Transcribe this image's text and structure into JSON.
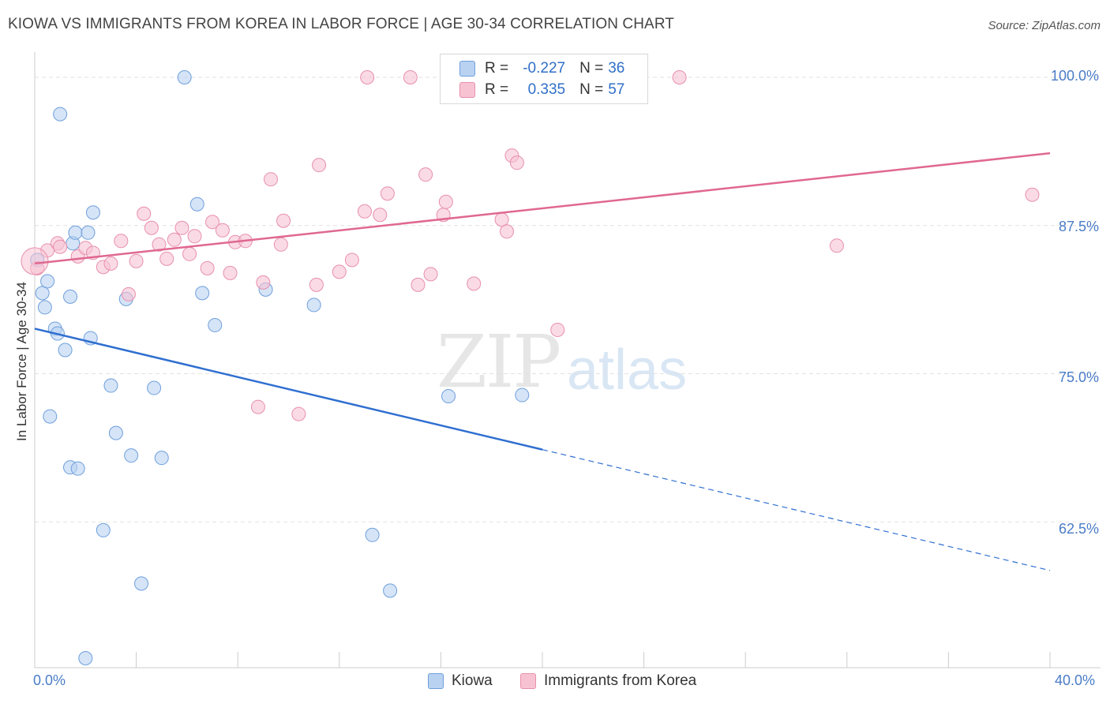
{
  "title": "KIOWA VS IMMIGRANTS FROM KOREA IN LABOR FORCE | AGE 30-34 CORRELATION CHART",
  "source": "Source: ZipAtlas.com",
  "watermark": {
    "zip": "ZIP",
    "atlas": "atlas"
  },
  "colors": {
    "kiowa_fill": "#b9d2f1",
    "kiowa_stroke": "#6f9fdc",
    "kiowa_line": "#2f6fd0",
    "korea_fill": "#f7c3d3",
    "korea_stroke": "#e88fac",
    "korea_line": "#e06890",
    "tick_label": "#4a7cc7",
    "grid": "#e2e2e2"
  },
  "legend_top": {
    "rows": [
      {
        "r_label": "R =",
        "r_value": "-0.227",
        "n_label": "N =",
        "n_value": "36"
      },
      {
        "r_label": "R =",
        "r_value": "0.335",
        "n_label": "N =",
        "n_value": "57"
      }
    ]
  },
  "legend_bottom": {
    "kiowa": "Kiowa",
    "korea": "Immigrants from Korea"
  },
  "chart_data": {
    "type": "scatter",
    "title": "KIOWA VS IMMIGRANTS FROM KOREA IN LABOR FORCE | AGE 30-34 CORRELATION CHART",
    "xlabel": "",
    "ylabel": "In Labor Force | Age 30-34",
    "xlim": [
      0,
      40
    ],
    "ylim": [
      51.0,
      101.2
    ],
    "x_tick_labels": [
      "0.0%",
      "40.0%"
    ],
    "y_ticks": [
      62.5,
      75.0,
      87.5,
      100.0
    ],
    "y_tick_labels": [
      "62.5%",
      "75.0%",
      "87.5%",
      "100.0%"
    ],
    "grid": true,
    "legend_placement": "top-center",
    "series": [
      {
        "name": "Kiowa",
        "R": -0.227,
        "N": 36,
        "trend": {
          "x0": 0,
          "y0": 78.8,
          "x1": 20,
          "y1": 68.6,
          "dashed_to_x": 40,
          "dashed_to_y": 58.4
        },
        "points": [
          [
            0.1,
            84.6
          ],
          [
            0.3,
            81.8
          ],
          [
            0.4,
            80.6
          ],
          [
            0.5,
            82.8
          ],
          [
            0.6,
            71.4
          ],
          [
            0.8,
            78.8
          ],
          [
            0.9,
            78.4
          ],
          [
            1.0,
            96.9
          ],
          [
            1.2,
            77.0
          ],
          [
            1.4,
            81.5
          ],
          [
            1.4,
            67.1
          ],
          [
            1.5,
            86.0
          ],
          [
            1.6,
            86.9
          ],
          [
            1.7,
            67.0
          ],
          [
            2.0,
            51.0
          ],
          [
            2.1,
            86.9
          ],
          [
            2.2,
            78.0
          ],
          [
            2.3,
            88.6
          ],
          [
            2.7,
            61.8
          ],
          [
            3.0,
            74.0
          ],
          [
            3.2,
            70.0
          ],
          [
            3.6,
            81.3
          ],
          [
            3.8,
            68.1
          ],
          [
            4.2,
            57.3
          ],
          [
            4.7,
            73.8
          ],
          [
            5.0,
            67.9
          ],
          [
            5.9,
            100.0
          ],
          [
            6.4,
            89.3
          ],
          [
            6.6,
            81.8
          ],
          [
            7.1,
            79.1
          ],
          [
            9.1,
            82.1
          ],
          [
            11.0,
            80.8
          ],
          [
            13.3,
            61.4
          ],
          [
            14.0,
            56.7
          ],
          [
            16.3,
            73.1
          ],
          [
            19.2,
            73.2
          ]
        ]
      },
      {
        "name": "Immigrants from Korea",
        "R": 0.335,
        "N": 57,
        "trend": {
          "x0": 0,
          "y0": 84.3,
          "x1": 40,
          "y1": 93.6
        },
        "points": [
          [
            0.1,
            83.9
          ],
          [
            0.5,
            85.4
          ],
          [
            0.9,
            86.0
          ],
          [
            1.0,
            85.7
          ],
          [
            1.7,
            84.9
          ],
          [
            2.0,
            85.6
          ],
          [
            2.3,
            85.2
          ],
          [
            2.7,
            84.0
          ],
          [
            3.0,
            84.3
          ],
          [
            3.4,
            86.2
          ],
          [
            3.7,
            81.7
          ],
          [
            4.0,
            84.5
          ],
          [
            4.3,
            88.5
          ],
          [
            4.6,
            87.3
          ],
          [
            4.9,
            85.9
          ],
          [
            5.2,
            84.7
          ],
          [
            5.5,
            86.3
          ],
          [
            5.8,
            87.3
          ],
          [
            6.1,
            85.1
          ],
          [
            6.3,
            86.6
          ],
          [
            6.8,
            83.9
          ],
          [
            7.0,
            87.8
          ],
          [
            7.4,
            87.1
          ],
          [
            7.7,
            83.5
          ],
          [
            7.9,
            86.1
          ],
          [
            8.3,
            86.2
          ],
          [
            8.8,
            72.2
          ],
          [
            9.0,
            82.7
          ],
          [
            9.3,
            91.4
          ],
          [
            9.7,
            85.9
          ],
          [
            9.8,
            87.9
          ],
          [
            10.4,
            71.6
          ],
          [
            11.1,
            82.5
          ],
          [
            11.2,
            92.6
          ],
          [
            12.0,
            83.6
          ],
          [
            12.5,
            84.6
          ],
          [
            13.0,
            88.7
          ],
          [
            13.1,
            100.0
          ],
          [
            13.6,
            88.4
          ],
          [
            13.9,
            90.2
          ],
          [
            14.8,
            100.0
          ],
          [
            15.1,
            82.5
          ],
          [
            15.4,
            91.8
          ],
          [
            15.6,
            83.4
          ],
          [
            16.1,
            88.4
          ],
          [
            16.2,
            89.5
          ],
          [
            17.3,
            82.6
          ],
          [
            18.4,
            88.0
          ],
          [
            18.6,
            87.0
          ],
          [
            18.8,
            93.4
          ],
          [
            19.0,
            92.8
          ],
          [
            20.5,
            100.0
          ],
          [
            20.6,
            78.7
          ],
          [
            25.4,
            100.0
          ],
          [
            31.6,
            85.8
          ],
          [
            39.3,
            90.1
          ],
          [
            0.0,
            84.5
          ]
        ]
      }
    ]
  }
}
